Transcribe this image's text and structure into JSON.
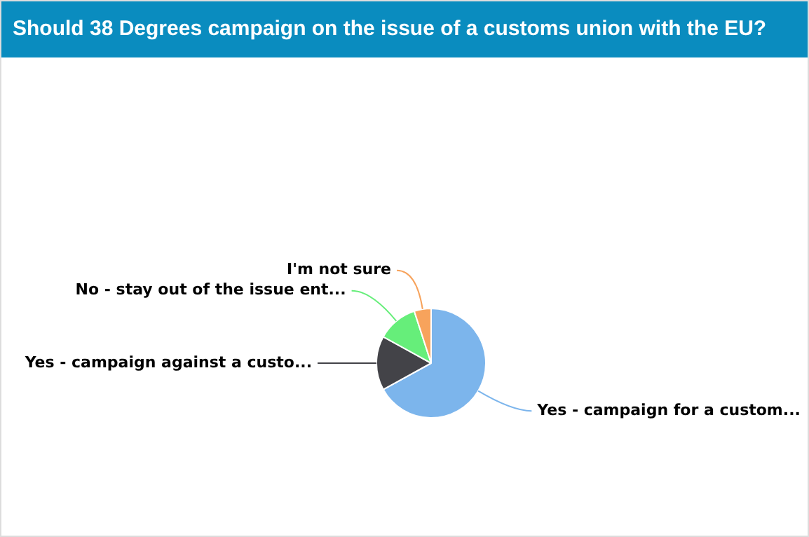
{
  "chart_data": {
    "type": "pie",
    "title": "Should 38 Degrees campaign on the issue of a customs union with the EU?",
    "categories": [
      "Yes - campaign for a custom...",
      "Yes - campaign against a custo...",
      "No - stay out of the issue ent...",
      "I'm not sure"
    ],
    "values": [
      67,
      16,
      12,
      5
    ],
    "colors": [
      "#7cb5ec",
      "#434348",
      "#66ee7a",
      "#f7a35c"
    ],
    "legend": false
  }
}
